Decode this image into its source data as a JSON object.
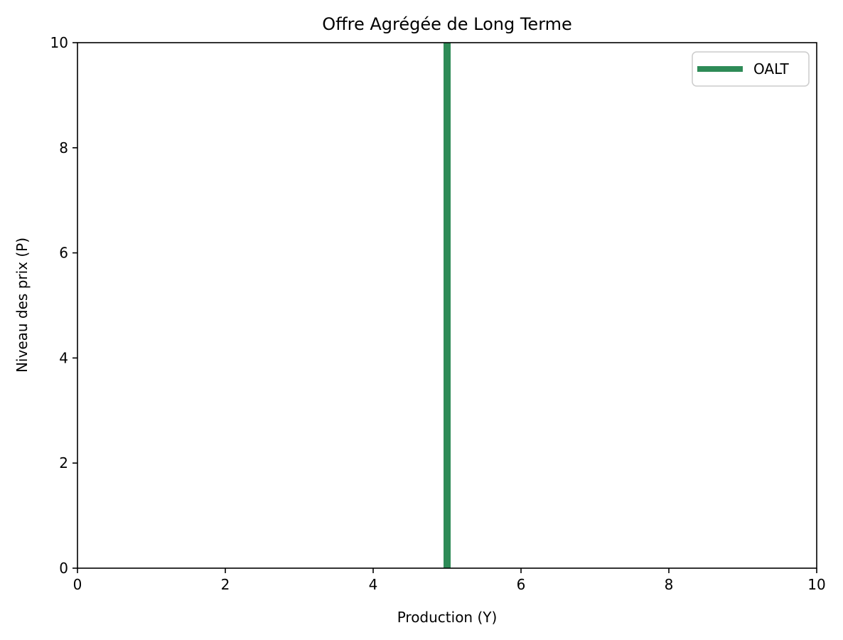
{
  "chart_data": {
    "type": "line",
    "title": "Offre Agrégée de Long Terme",
    "xlabel": "Production (Y)",
    "ylabel": "Niveau des prix (P)",
    "xlim": [
      0,
      10
    ],
    "ylim": [
      0,
      10
    ],
    "xticks": [
      0,
      2,
      4,
      6,
      8,
      10
    ],
    "yticks": [
      0,
      2,
      4,
      6,
      8,
      10
    ],
    "grid": false,
    "legend_position": "top-right",
    "series": [
      {
        "name": "OALT",
        "color": "#2e8b57",
        "x": [
          5,
          5
        ],
        "y": [
          0,
          10
        ]
      }
    ]
  }
}
